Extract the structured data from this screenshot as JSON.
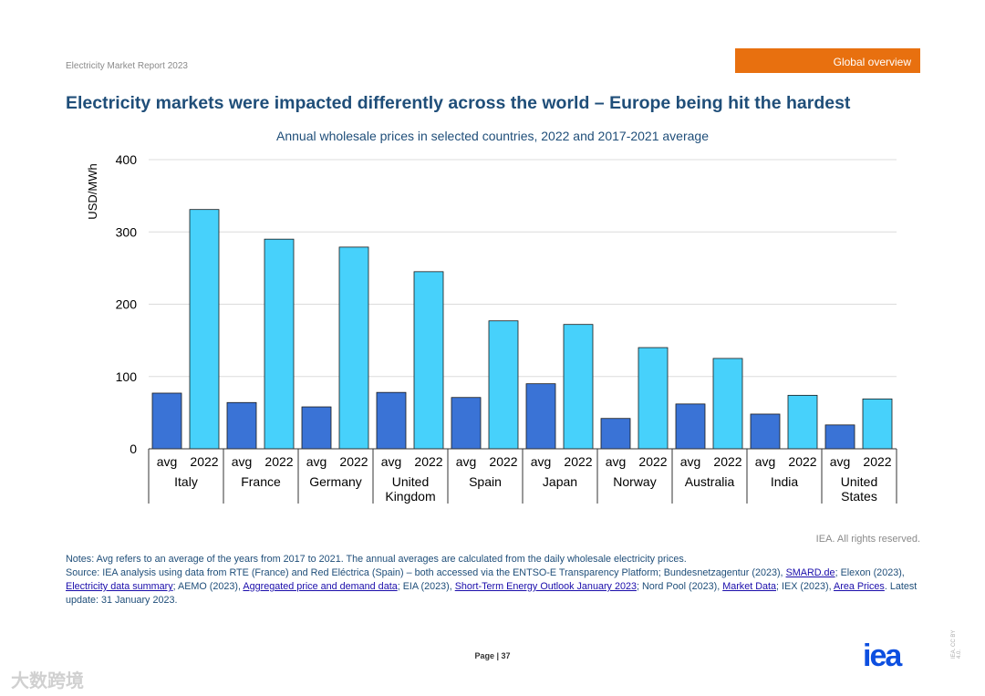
{
  "header": {
    "report": "Electricity Market Report 2023",
    "section": "Global overview"
  },
  "title": "Electricity markets were impacted differently across the world – Europe being hit the hardest",
  "colors": {
    "avg": "#3a73d6",
    "y2022": "#47d1fb",
    "title": "#1f4e79",
    "badge": "#e8700f"
  },
  "chart_data": {
    "type": "bar",
    "title": "Annual wholesale prices in selected countries, 2022 and 2017-2021 average",
    "ylabel": "USD/MWh",
    "ylim": [
      0,
      400
    ],
    "yticks": [
      0,
      100,
      200,
      300,
      400
    ],
    "grid": true,
    "sub_labels": [
      "avg",
      "2022"
    ],
    "categories": [
      "Italy",
      "France",
      "Germany",
      "United Kingdom",
      "Spain",
      "Japan",
      "Norway",
      "Australia",
      "India",
      "United States"
    ],
    "category_lines": [
      [
        "Italy"
      ],
      [
        "France"
      ],
      [
        "Germany"
      ],
      [
        "United",
        "Kingdom"
      ],
      [
        "Spain"
      ],
      [
        "Japan"
      ],
      [
        "Norway"
      ],
      [
        "Australia"
      ],
      [
        "India"
      ],
      [
        "United",
        "States"
      ]
    ],
    "series": [
      {
        "name": "avg",
        "values": [
          77,
          64,
          58,
          78,
          71,
          90,
          42,
          62,
          48,
          33
        ]
      },
      {
        "name": "2022",
        "values": [
          331,
          290,
          279,
          245,
          177,
          172,
          140,
          125,
          74,
          69
        ]
      }
    ]
  },
  "footer": {
    "rights": "IEA. All rights reserved.",
    "notes": "Notes: Avg refers to an average of the years from 2017 to 2021. The annual averages are calculated from the daily wholesale electricity prices.",
    "source": {
      "s1": "Source: IEA analysis using data from RTE (France) and Red Eléctrica (Spain) – both accessed via the ENTSO-E Transparency Platform; Bundesnetzagentur (2023), ",
      "l1": "SMARD.de",
      "s2": "; Elexon (2023), ",
      "l2": "Electricity data summary",
      "s3": "; AEMO (2023), ",
      "l3": "Aggregated price and demand data",
      "s4": "; EIA (2023), ",
      "l4": "Short-Term Energy Outlook January 2023",
      "s5": "; Nord Pool (2023), ",
      "l5": "Market Data",
      "s6": "; IEX (2023), ",
      "l6": "Area Prices",
      "s7": ". Latest update: 31 January 2023."
    },
    "page_label": "Page | 37",
    "logo": "iea",
    "license": "IEA. CC BY 4.0.",
    "watermark": "大数跨境"
  }
}
